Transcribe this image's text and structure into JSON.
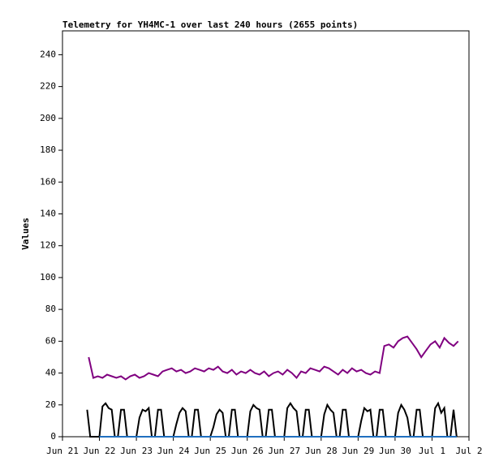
{
  "chart_data": {
    "type": "line",
    "title": "Telemetry for YH4MC-1 over last 240 hours (2655 points)",
    "y_label": "Values",
    "xlim": [
      0,
      264
    ],
    "xticks": [
      {
        "value": 0,
        "label": "Jun 21"
      },
      {
        "value": 24,
        "label": "Jun 22"
      },
      {
        "value": 48,
        "label": "Jun 23"
      },
      {
        "value": 72,
        "label": "Jun 24"
      },
      {
        "value": 96,
        "label": "Jun 25"
      },
      {
        "value": 120,
        "label": "Jun 26"
      },
      {
        "value": 144,
        "label": "Jun 27"
      },
      {
        "value": 168,
        "label": "Jun 28"
      },
      {
        "value": 192,
        "label": "Jun 29"
      },
      {
        "value": 216,
        "label": "Jun 30"
      },
      {
        "value": 240,
        "label": "Jul 1"
      },
      {
        "value": 264,
        "label": "Jul 2"
      }
    ],
    "ylim": [
      0,
      255
    ],
    "yticks": [
      0,
      20,
      40,
      60,
      80,
      100,
      120,
      140,
      160,
      180,
      200,
      220,
      240
    ],
    "series": [
      {
        "color": "#800080",
        "x": [
          17,
          20,
          23,
          26,
          29,
          32,
          35,
          38,
          41,
          44,
          47,
          50,
          53,
          56,
          59,
          62,
          65,
          68,
          71,
          74,
          77,
          80,
          83,
          86,
          89,
          92,
          95,
          98,
          101,
          104,
          107,
          110,
          113,
          116,
          119,
          122,
          125,
          128,
          131,
          134,
          137,
          140,
          143,
          146,
          149,
          152,
          155,
          158,
          161,
          164,
          167,
          170,
          173,
          176,
          179,
          182,
          185,
          188,
          191,
          194,
          197,
          200,
          203,
          206,
          209,
          212,
          215,
          218,
          221,
          224,
          227,
          230,
          233,
          236,
          239,
          242,
          245,
          248,
          251,
          254,
          257
        ],
        "values": [
          50,
          37,
          38,
          37,
          39,
          38,
          37,
          38,
          36,
          38,
          39,
          37,
          38,
          40,
          39,
          38,
          41,
          42,
          43,
          41,
          42,
          40,
          41,
          43,
          42,
          41,
          43,
          42,
          44,
          41,
          40,
          42,
          39,
          41,
          40,
          42,
          40,
          39,
          41,
          38,
          40,
          41,
          39,
          42,
          40,
          37,
          41,
          40,
          43,
          42,
          41,
          44,
          43,
          41,
          39,
          42,
          40,
          43,
          41,
          42,
          40,
          39,
          41,
          40,
          57,
          58,
          56,
          60,
          62,
          63,
          59,
          55,
          50,
          54,
          58,
          60,
          56,
          62,
          59,
          57,
          60
        ]
      },
      {
        "color": "#000000",
        "x": [
          16,
          18,
          20,
          22,
          24,
          26,
          28,
          30,
          32,
          34,
          36,
          38,
          40,
          42,
          44,
          46,
          48,
          50,
          52,
          54,
          56,
          58,
          60,
          62,
          64,
          66,
          68,
          70,
          72,
          74,
          76,
          78,
          80,
          82,
          84,
          86,
          88,
          90,
          92,
          94,
          96,
          98,
          100,
          102,
          104,
          106,
          108,
          110,
          112,
          114,
          116,
          118,
          120,
          122,
          124,
          126,
          128,
          130,
          132,
          134,
          136,
          138,
          140,
          142,
          144,
          146,
          148,
          150,
          152,
          154,
          156,
          158,
          160,
          162,
          164,
          166,
          168,
          170,
          172,
          174,
          176,
          178,
          180,
          182,
          184,
          186,
          188,
          190,
          192,
          194,
          196,
          198,
          200,
          202,
          204,
          206,
          208,
          210,
          212,
          214,
          216,
          218,
          220,
          222,
          224,
          226,
          228,
          230,
          232,
          234,
          236,
          238,
          240,
          242,
          244,
          246,
          248,
          250,
          252,
          254,
          256
        ],
        "values": [
          17,
          0,
          0,
          0,
          0,
          19,
          21,
          18,
          17,
          0,
          0,
          17,
          17,
          0,
          0,
          0,
          0,
          12,
          17,
          16,
          18,
          0,
          0,
          17,
          17,
          0,
          0,
          0,
          0,
          8,
          15,
          18,
          16,
          0,
          0,
          17,
          17,
          0,
          0,
          0,
          0,
          6,
          14,
          17,
          15,
          0,
          0,
          17,
          17,
          0,
          0,
          0,
          0,
          16,
          20,
          18,
          17,
          0,
          0,
          17,
          17,
          0,
          0,
          0,
          0,
          18,
          21,
          18,
          16,
          0,
          0,
          17,
          17,
          0,
          0,
          0,
          0,
          14,
          20,
          17,
          15,
          0,
          0,
          17,
          17,
          0,
          0,
          0,
          0,
          10,
          18,
          16,
          17,
          0,
          0,
          17,
          17,
          0,
          0,
          0,
          0,
          15,
          20,
          17,
          12,
          0,
          0,
          17,
          17,
          0,
          0,
          0,
          0,
          18,
          21,
          15,
          18,
          0,
          0,
          17,
          0
        ]
      },
      {
        "color": "#1f6fbf",
        "x": [
          24,
          256
        ],
        "values": [
          0,
          0
        ]
      }
    ]
  }
}
